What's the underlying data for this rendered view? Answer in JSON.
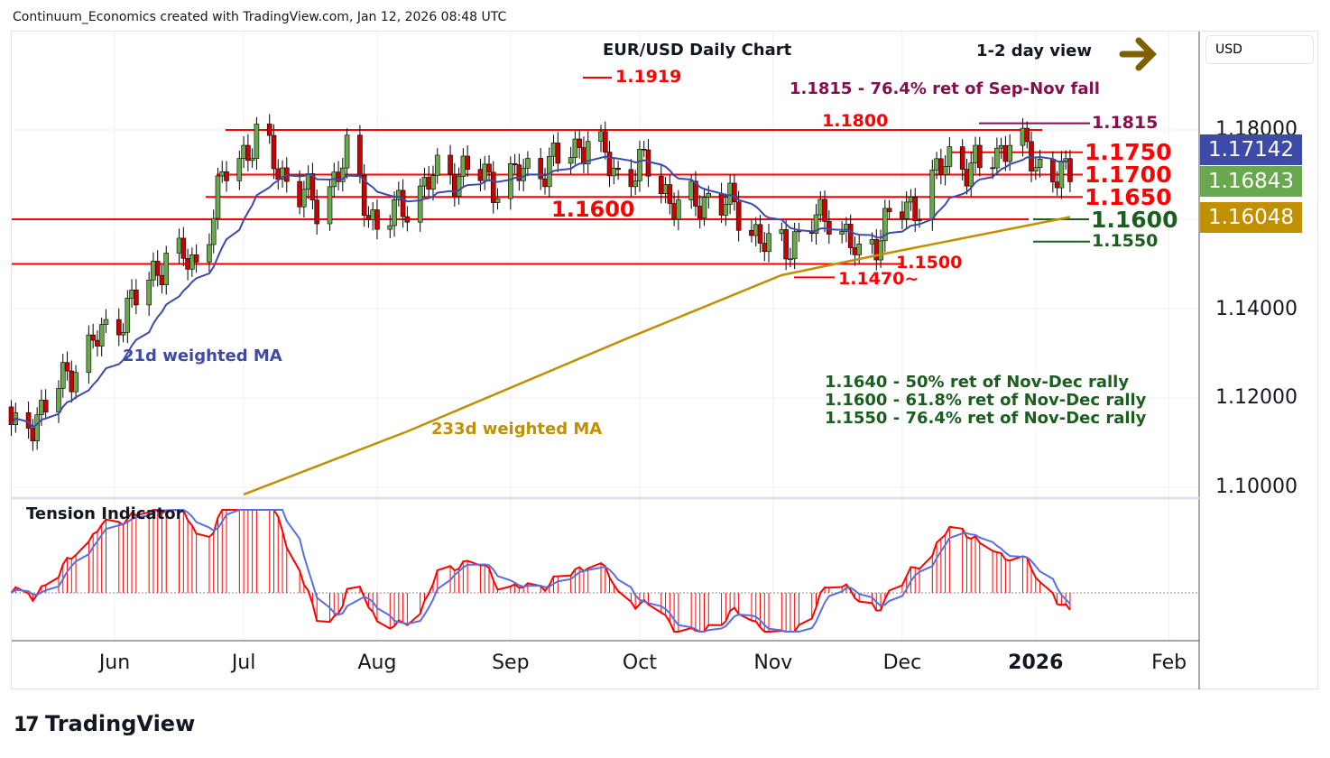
{
  "header": {
    "credit": "Continuum_Economics created with TradingView.com, Jan 12, 2026 08:48 UTC",
    "currency": "USD",
    "logo": "TradingView"
  },
  "chart_data": {
    "type": "candlestick",
    "title": "EUR/USD Daily Chart",
    "view": "1-2 day view",
    "view_direction": "right",
    "ylim": [
      1.096,
      1.198
    ],
    "y_ticks": [
      "1.18000",
      "1.14000",
      "1.12000",
      "1.10000"
    ],
    "x_ticks": [
      {
        "label": "Jun",
        "date": "2025-06-01"
      },
      {
        "label": "Jul",
        "date": "2025-07-01"
      },
      {
        "label": "Aug",
        "date": "2025-08-01"
      },
      {
        "label": "Sep",
        "date": "2025-09-01"
      },
      {
        "label": "Oct",
        "date": "2025-10-01"
      },
      {
        "label": "Nov",
        "date": "2025-11-01"
      },
      {
        "label": "Dec",
        "date": "2025-12-01"
      },
      {
        "label": "2026",
        "date": "2026-01-01"
      },
      {
        "label": "Feb",
        "date": "2026-02-01"
      }
    ],
    "weekly_closes": [
      [
        "2025-05-09",
        1.112
      ],
      [
        "2025-05-16",
        1.118
      ],
      [
        "2025-05-23",
        1.128
      ],
      [
        "2025-05-30",
        1.135
      ],
      [
        "2025-06-06",
        1.142
      ],
      [
        "2025-06-13",
        1.152
      ],
      [
        "2025-06-20",
        1.15
      ],
      [
        "2025-06-27",
        1.171
      ],
      [
        "2025-07-04",
        1.178
      ],
      [
        "2025-07-11",
        1.169
      ],
      [
        "2025-07-18",
        1.163
      ],
      [
        "2025-07-25",
        1.174
      ],
      [
        "2025-08-01",
        1.158
      ],
      [
        "2025-08-08",
        1.164
      ],
      [
        "2025-08-15",
        1.17
      ],
      [
        "2025-08-22",
        1.171
      ],
      [
        "2025-08-29",
        1.168
      ],
      [
        "2025-09-05",
        1.171
      ],
      [
        "2025-09-12",
        1.173
      ],
      [
        "2025-09-19",
        1.178
      ],
      [
        "2025-09-26",
        1.17
      ],
      [
        "2025-10-03",
        1.172
      ],
      [
        "2025-10-10",
        1.162
      ],
      [
        "2025-10-17",
        1.165
      ],
      [
        "2025-10-24",
        1.162
      ],
      [
        "2025-10-31",
        1.153
      ],
      [
        "2025-11-07",
        1.156
      ],
      [
        "2025-11-14",
        1.162
      ],
      [
        "2025-11-21",
        1.151
      ],
      [
        "2025-11-28",
        1.16
      ],
      [
        "2025-12-05",
        1.164
      ],
      [
        "2025-12-12",
        1.174
      ],
      [
        "2025-12-19",
        1.171
      ],
      [
        "2025-12-26",
        1.178
      ],
      [
        "2026-01-02",
        1.172
      ],
      [
        "2026-01-09",
        1.1684
      ]
    ],
    "ma233": [
      [
        "2025-07-01",
        1.0984
      ],
      [
        "2025-08-08",
        1.1125
      ],
      [
        "2025-09-28",
        1.1333
      ],
      [
        "2025-11-03",
        1.1475
      ],
      [
        "2025-11-28",
        1.1525
      ],
      [
        "2026-01-09",
        1.1605
      ]
    ],
    "last_values": {
      "ma21": "1.17142",
      "close": "1.16843",
      "ma233": "1.16048"
    },
    "colors": {
      "up": "#6aa84f",
      "down": "#cc0000",
      "ma21": "#3d4aa8",
      "ma233": "#c09000",
      "level": "#ff0000",
      "support": "#1b5e20",
      "fib": "#880e4f",
      "arrow": "#7f6000"
    },
    "levels": [
      {
        "price": 1.1919,
        "label": "1.1919",
        "color": "red"
      },
      {
        "price": 1.18,
        "label": "1.1800",
        "color": "red"
      },
      {
        "price": 1.1815,
        "label": "1.1815",
        "color": "fib"
      },
      {
        "price": 1.175,
        "label": "1.1750",
        "color": "red"
      },
      {
        "price": 1.17,
        "label": "1.1700",
        "color": "red"
      },
      {
        "price": 1.165,
        "label": "1.1650",
        "color": "red"
      },
      {
        "price": 1.16,
        "label": "1.1600",
        "color": "red"
      },
      {
        "price": 1.16,
        "label": "1.1600",
        "color": "support"
      },
      {
        "price": 1.155,
        "label": "1.1550",
        "color": "support"
      },
      {
        "price": 1.15,
        "label": "1.1500",
        "color": "red"
      },
      {
        "price": 1.147,
        "label": "1.1470~",
        "color": "red"
      }
    ],
    "annotations": {
      "fib_top": "1.1815 - 76.4% ret of Sep-Nov fall",
      "ma21_label": "21d weighted MA",
      "ma233_label": "233d weighted MA",
      "notes": [
        "1.1640 - 50% ret of Nov-Dec rally",
        "1.1600 - 61.8% ret of Nov-Dec rally",
        "1.1550 - 76.4% ret of Nov-Dec rally"
      ]
    },
    "indicator": {
      "title": "Tension Indicator"
    }
  }
}
